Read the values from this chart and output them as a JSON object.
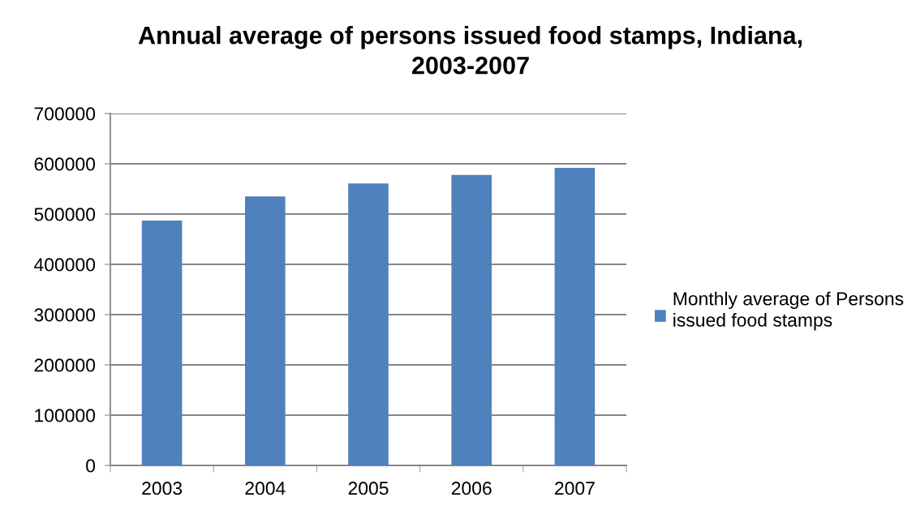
{
  "chart_data": {
    "type": "bar",
    "title": "Annual average of persons issued food stamps, Indiana, 2003-2007",
    "categories": [
      "2003",
      "2004",
      "2005",
      "2006",
      "2007"
    ],
    "series": [
      {
        "name": "Monthly average of Persons issued food stamps",
        "color": "#4f81bd",
        "values": [
          487000,
          535000,
          561000,
          578000,
          592000
        ]
      }
    ],
    "ylim": [
      0,
      700000
    ],
    "yticks": [
      0,
      100000,
      200000,
      300000,
      400000,
      500000,
      600000,
      700000
    ],
    "grid": "y",
    "legend": "right"
  }
}
